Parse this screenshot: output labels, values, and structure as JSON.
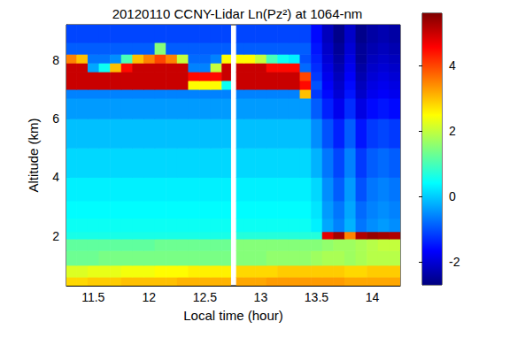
{
  "chart_data": {
    "type": "heatmap",
    "title": "20120110 CCNY-Lidar Ln(Pz²) at 1064-nm",
    "x_label": "Local time (hour)",
    "y_label": "Altitude (km)",
    "xlim": [
      11.26,
      14.25
    ],
    "xticks": [
      11.5,
      12,
      12.5,
      13,
      13.5,
      14
    ],
    "ylim": [
      0.3,
      9.2
    ],
    "yticks": [
      2,
      4,
      6,
      8
    ],
    "color_range": [
      -2.7,
      5.6
    ],
    "color_ticks": [
      -2,
      0,
      2,
      4
    ],
    "x_edges": [
      11.25,
      11.35,
      11.45,
      11.55,
      11.65,
      11.75,
      11.85,
      11.95,
      12.05,
      12.15,
      12.25,
      12.35,
      12.45,
      12.55,
      12.65,
      12.73,
      12.78,
      12.85,
      12.95,
      13.05,
      13.15,
      13.25,
      13.35,
      13.45,
      13.55,
      13.65,
      13.75,
      13.85,
      13.95,
      14.05,
      14.15,
      14.25
    ],
    "y_edges": [
      0.3,
      0.6,
      1.0,
      1.5,
      1.9,
      2.15,
      2.6,
      3.2,
      4,
      5,
      6,
      6.7,
      7.0,
      7.3,
      7.6,
      7.9,
      8.2,
      8.6,
      9.2
    ],
    "values": [
      [
        2.8,
        2.8,
        2.9,
        2.9,
        2.9,
        3,
        3,
        3,
        3,
        3,
        3.1,
        3.1,
        3.1,
        3.1,
        3.1,
        null,
        3.2,
        3.2,
        3.2,
        3.3,
        3.3,
        3.3,
        3.3,
        3.3,
        3.3,
        3.3,
        3.2,
        3.2,
        3.2,
        3.2,
        3.2
      ],
      [
        2.2,
        2.2,
        2.3,
        2.3,
        2.3,
        2.4,
        2.4,
        2.4,
        2.5,
        2.5,
        2.5,
        2.6,
        2.6,
        2.6,
        2.6,
        null,
        2.8,
        2.8,
        2.8,
        2.8,
        2.9,
        2.9,
        2.9,
        2.9,
        2.9,
        2.9,
        2.8,
        2.8,
        2.9,
        2.9,
        2.9
      ],
      [
        1.3,
        1.3,
        1.3,
        1.4,
        1.4,
        1.4,
        1.4,
        1.4,
        1.4,
        1.4,
        1.4,
        1.4,
        1.4,
        1.4,
        1.4,
        null,
        1.5,
        1.5,
        1.5,
        1.6,
        1.6,
        1.6,
        1.6,
        1.7,
        1.8,
        1.8,
        1.7,
        1.8,
        1.9,
        1.9,
        1.9
      ],
      [
        1.2,
        1.2,
        1.2,
        1.2,
        1.2,
        1.2,
        1.2,
        1.2,
        1.3,
        1.3,
        1.3,
        1.3,
        1.3,
        1.3,
        1.3,
        null,
        1.5,
        1.5,
        1.5,
        1.5,
        1.5,
        1.5,
        1.5,
        1.5,
        1.6,
        1.7,
        1.7,
        1.8,
        1.9,
        2.0,
        2.0
      ],
      [
        0.6,
        0.6,
        0.6,
        0.6,
        0.6,
        0.6,
        0.6,
        0.6,
        0.6,
        0.6,
        0.6,
        0.6,
        0.6,
        0.6,
        0.6,
        null,
        0.7,
        0.7,
        0.7,
        0.7,
        0.7,
        0.7,
        0.7,
        0.7,
        4.8,
        5.3,
        3.5,
        5.2,
        5.4,
        5.3,
        5.2
      ],
      [
        0.5,
        0.5,
        0.5,
        0.5,
        0.5,
        0.5,
        0.5,
        0.5,
        0.5,
        0.5,
        0.5,
        0.5,
        0.5,
        0.5,
        0.5,
        null,
        0.5,
        0.5,
        0.5,
        0.5,
        0.5,
        0.5,
        0.5,
        0.3,
        -0.3,
        -0.6,
        -0.2,
        -0.7,
        -0.5,
        -0.4,
        -0.5
      ],
      [
        0.4,
        0.4,
        0.4,
        0.4,
        0.4,
        0.4,
        0.4,
        0.4,
        0.4,
        0.4,
        0.4,
        0.4,
        0.4,
        0.4,
        0.4,
        null,
        0.4,
        0.4,
        0.4,
        0.4,
        0.4,
        0.4,
        0.4,
        0.2,
        -0.4,
        -0.7,
        -0.3,
        -0.8,
        -0.6,
        -0.5,
        -0.6
      ],
      [
        0.3,
        0.3,
        0.3,
        0.3,
        0.3,
        0.3,
        0.3,
        0.3,
        0.3,
        0.3,
        0.3,
        0.3,
        0.3,
        0.3,
        0.3,
        null,
        0.3,
        0.3,
        0.3,
        0.3,
        0.3,
        0.3,
        0.3,
        0.1,
        -0.5,
        -0.9,
        -0.4,
        -1.0,
        -0.7,
        -0.6,
        -0.7
      ],
      [
        0.1,
        0.1,
        0.1,
        0.1,
        0.1,
        0.1,
        0.1,
        0.1,
        0.1,
        0.1,
        0.1,
        0.1,
        0.1,
        0.1,
        0.1,
        null,
        0.1,
        0.1,
        0.1,
        0.1,
        0.1,
        0.1,
        0.1,
        -0.2,
        -0.7,
        -1.1,
        -0.6,
        -1.2,
        -0.9,
        -0.8,
        -0.9
      ],
      [
        -0.1,
        -0.1,
        -0.1,
        -0.1,
        -0.1,
        -0.1,
        -0.1,
        -0.1,
        -0.1,
        -0.1,
        -0.1,
        -0.1,
        -0.1,
        -0.1,
        -0.1,
        null,
        -0.1,
        -0.1,
        -0.1,
        -0.1,
        -0.1,
        -0.1,
        -0.1,
        -0.5,
        -1.0,
        -1.4,
        -0.9,
        -1.5,
        -1.2,
        -1.1,
        -1.2
      ],
      [
        -0.4,
        -0.4,
        -0.4,
        -0.4,
        -0.4,
        -0.4,
        -0.4,
        -0.4,
        -0.4,
        -0.4,
        -0.4,
        -0.4,
        -0.4,
        -0.4,
        -0.4,
        null,
        -0.4,
        -0.4,
        -0.4,
        -0.4,
        -0.4,
        -0.4,
        -0.4,
        -0.9,
        -1.4,
        -1.8,
        -1.3,
        -1.9,
        -1.6,
        -1.5,
        -1.6
      ],
      [
        -0.6,
        -0.6,
        -0.6,
        -0.6,
        -0.6,
        -0.6,
        -0.6,
        -0.6,
        -0.6,
        -0.6,
        -0.6,
        -0.6,
        -0.6,
        -0.6,
        -0.6,
        null,
        -0.6,
        -0.6,
        -0.6,
        -0.6,
        -0.6,
        -0.6,
        3.0,
        -1.2,
        -1.6,
        -2.0,
        -1.5,
        -2.1,
        -1.8,
        -1.7,
        -1.8
      ],
      [
        5,
        5,
        5,
        5,
        5,
        5,
        5,
        5,
        5,
        5,
        5,
        2.5,
        2.5,
        2.5,
        0.5,
        null,
        5,
        5,
        5,
        5,
        5,
        5,
        4.5,
        -1.0,
        -1.7,
        -2.1,
        -1.6,
        -2.2,
        -1.9,
        -1.8,
        -1.9
      ],
      [
        5,
        5,
        5,
        5,
        5,
        5,
        5,
        5,
        5,
        5,
        5,
        4.5,
        4.5,
        4.5,
        5,
        null,
        5,
        5,
        5,
        5,
        5,
        5,
        4,
        -1.2,
        -1.8,
        -2.2,
        -1.7,
        -2.3,
        -2.0,
        -1.9,
        -2.0
      ],
      [
        5,
        5,
        -0.3,
        0.5,
        3,
        4.5,
        5,
        5,
        5,
        5,
        5,
        -0.6,
        -0.6,
        2,
        5,
        null,
        5,
        5,
        5,
        4.5,
        4.5,
        4.5,
        -0.8,
        -1.3,
        -1.9,
        -2.3,
        -1.8,
        -2.4,
        -2.1,
        -2.0,
        -2.1
      ],
      [
        3.5,
        3,
        -0.7,
        -0.7,
        -0.5,
        1,
        3,
        3.5,
        4,
        3.5,
        2,
        -0.8,
        -0.8,
        -0.6,
        2.5,
        null,
        2.5,
        2.5,
        2,
        1,
        0.5,
        0.3,
        -1.0,
        -1.4,
        -2.0,
        -2.4,
        -1.9,
        -2.5,
        -2.2,
        -2.1,
        -2.2
      ],
      [
        -0.9,
        -0.9,
        -0.9,
        -0.9,
        -0.9,
        -0.9,
        -0.9,
        -0.9,
        1.5,
        -0.9,
        -0.9,
        -0.9,
        -0.9,
        -0.9,
        -0.9,
        null,
        -0.9,
        -0.9,
        -0.9,
        -0.9,
        -0.9,
        -0.9,
        -0.9,
        -1.5,
        -2.1,
        -2.5,
        -2.0,
        -2.5,
        -2.3,
        -2.2,
        -2.3
      ],
      [
        -1.1,
        -1.1,
        -1.1,
        -1.1,
        -1.1,
        -1.1,
        -1.1,
        -1.1,
        -1.1,
        -1.1,
        -1.1,
        -1.1,
        -1.1,
        -1.1,
        -1.1,
        null,
        -1.1,
        -1.1,
        -1.1,
        -1.1,
        -1.1,
        -1.1,
        -1.1,
        -1.6,
        -2.2,
        -2.6,
        -2.1,
        -2.6,
        -2.4,
        -2.3,
        -2.4
      ]
    ]
  }
}
